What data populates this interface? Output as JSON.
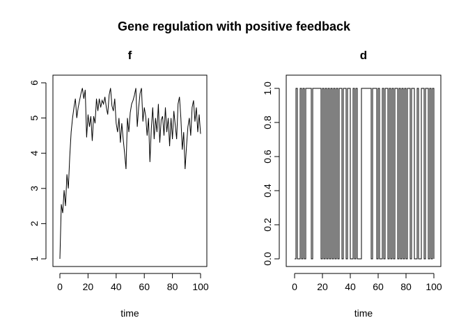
{
  "figure": {
    "title": "Gene regulation with positive feedback"
  },
  "chart_data": [
    {
      "type": "line",
      "title": "f",
      "xlabel": "time",
      "ylabel": "",
      "xlim": [
        0,
        100
      ],
      "ylim": [
        1,
        6
      ],
      "xticks": [
        0,
        20,
        40,
        60,
        80,
        100
      ],
      "yticks": [
        1,
        2,
        3,
        4,
        5,
        6
      ],
      "yticks_rotated": true,
      "series": [
        {
          "x": [
            0,
            1,
            2,
            3,
            4,
            5,
            6,
            7,
            8,
            9,
            10,
            11,
            12,
            13,
            14,
            15,
            16,
            17,
            18,
            19,
            20,
            21,
            22,
            23,
            24,
            25,
            26,
            27,
            28,
            29,
            30,
            31,
            32,
            33,
            34,
            35,
            36,
            37,
            38,
            39,
            40,
            41,
            42,
            43,
            44,
            45,
            46,
            47,
            48,
            49,
            50,
            51,
            52,
            53,
            54,
            55,
            56,
            57,
            58,
            59,
            60,
            61,
            62,
            63,
            64,
            65,
            66,
            67,
            68,
            69,
            70,
            71,
            72,
            73,
            74,
            75,
            76,
            77,
            78,
            79,
            80,
            81,
            82,
            83,
            84,
            85,
            86,
            87,
            88,
            89,
            90,
            91,
            92,
            93,
            94,
            95,
            96,
            97,
            98,
            99,
            100
          ],
          "y": [
            1.0,
            2.55,
            2.3,
            2.95,
            2.5,
            3.4,
            3.0,
            3.9,
            4.6,
            5.0,
            5.3,
            5.55,
            5.0,
            5.3,
            5.5,
            5.7,
            5.85,
            5.55,
            5.8,
            4.45,
            5.1,
            4.75,
            5.05,
            4.35,
            5.05,
            4.85,
            5.55,
            5.2,
            5.55,
            5.3,
            5.5,
            5.4,
            5.6,
            5.3,
            5.1,
            5.65,
            5.85,
            5.35,
            5.2,
            5.55,
            4.85,
            4.6,
            5.0,
            4.3,
            4.85,
            4.4,
            4.0,
            3.55,
            5.0,
            4.6,
            5.15,
            5.4,
            5.5,
            5.65,
            5.85,
            4.75,
            5.3,
            5.7,
            5.85,
            4.9,
            5.3,
            5.05,
            4.5,
            5.0,
            3.75,
            4.7,
            5.3,
            4.4,
            5.0,
            4.6,
            5.4,
            4.3,
            4.95,
            5.05,
            4.5,
            5.3,
            4.6,
            5.0,
            4.2,
            5.0,
            4.4,
            5.2,
            4.8,
            4.4,
            5.4,
            5.6,
            5.0,
            4.1,
            4.6,
            3.55,
            4.2,
            4.75,
            5.0,
            4.5,
            5.3,
            5.5,
            4.9,
            5.3,
            4.6,
            5.1,
            4.55
          ]
        }
      ]
    },
    {
      "type": "line",
      "title": "d",
      "xlabel": "time",
      "ylabel": "",
      "xlim": [
        0,
        100
      ],
      "ylim": [
        0,
        1
      ],
      "xticks": [
        0,
        20,
        40,
        60,
        80,
        100
      ],
      "yticks": [
        "0.0",
        "0.2",
        "0.4",
        "0.6",
        "0.8",
        "1.0"
      ],
      "yticks_rotated": true,
      "step": true,
      "series": [
        {
          "x": [
            0,
            1,
            2,
            3,
            4,
            5,
            6,
            7,
            8,
            9,
            10,
            11,
            12,
            13,
            14,
            15,
            16,
            17,
            18,
            19,
            20,
            21,
            22,
            23,
            24,
            25,
            26,
            27,
            28,
            29,
            30,
            31,
            32,
            33,
            34,
            35,
            36,
            37,
            38,
            39,
            40,
            41,
            42,
            43,
            44,
            45,
            46,
            47,
            48,
            49,
            50,
            51,
            52,
            53,
            54,
            55,
            56,
            57,
            58,
            59,
            60,
            61,
            62,
            63,
            64,
            65,
            66,
            67,
            68,
            69,
            70,
            71,
            72,
            73,
            74,
            75,
            76,
            77,
            78,
            79,
            80,
            81,
            82,
            83,
            84,
            85,
            86,
            87,
            88,
            89,
            90,
            91,
            92,
            93,
            94,
            95,
            96,
            97,
            98,
            99,
            100
          ],
          "y": [
            0,
            1,
            0,
            0,
            1,
            0,
            1,
            0,
            1,
            1,
            1,
            1,
            0,
            1,
            1,
            1,
            1,
            1,
            1,
            0,
            1,
            0,
            1,
            0,
            1,
            0,
            1,
            0,
            1,
            0,
            1,
            0,
            1,
            1,
            0,
            1,
            1,
            0,
            1,
            1,
            0,
            0,
            1,
            0,
            1,
            0,
            0,
            0,
            1,
            1,
            1,
            1,
            1,
            1,
            1,
            0,
            1,
            1,
            1,
            0,
            1,
            0,
            0,
            1,
            0,
            1,
            1,
            0,
            1,
            0,
            1,
            0,
            1,
            1,
            0,
            1,
            0,
            1,
            0,
            1,
            0,
            1,
            1,
            0,
            1,
            1,
            0,
            0,
            1,
            0,
            0,
            1,
            1,
            0,
            1,
            1,
            0,
            1,
            0,
            1,
            0
          ]
        }
      ]
    }
  ]
}
